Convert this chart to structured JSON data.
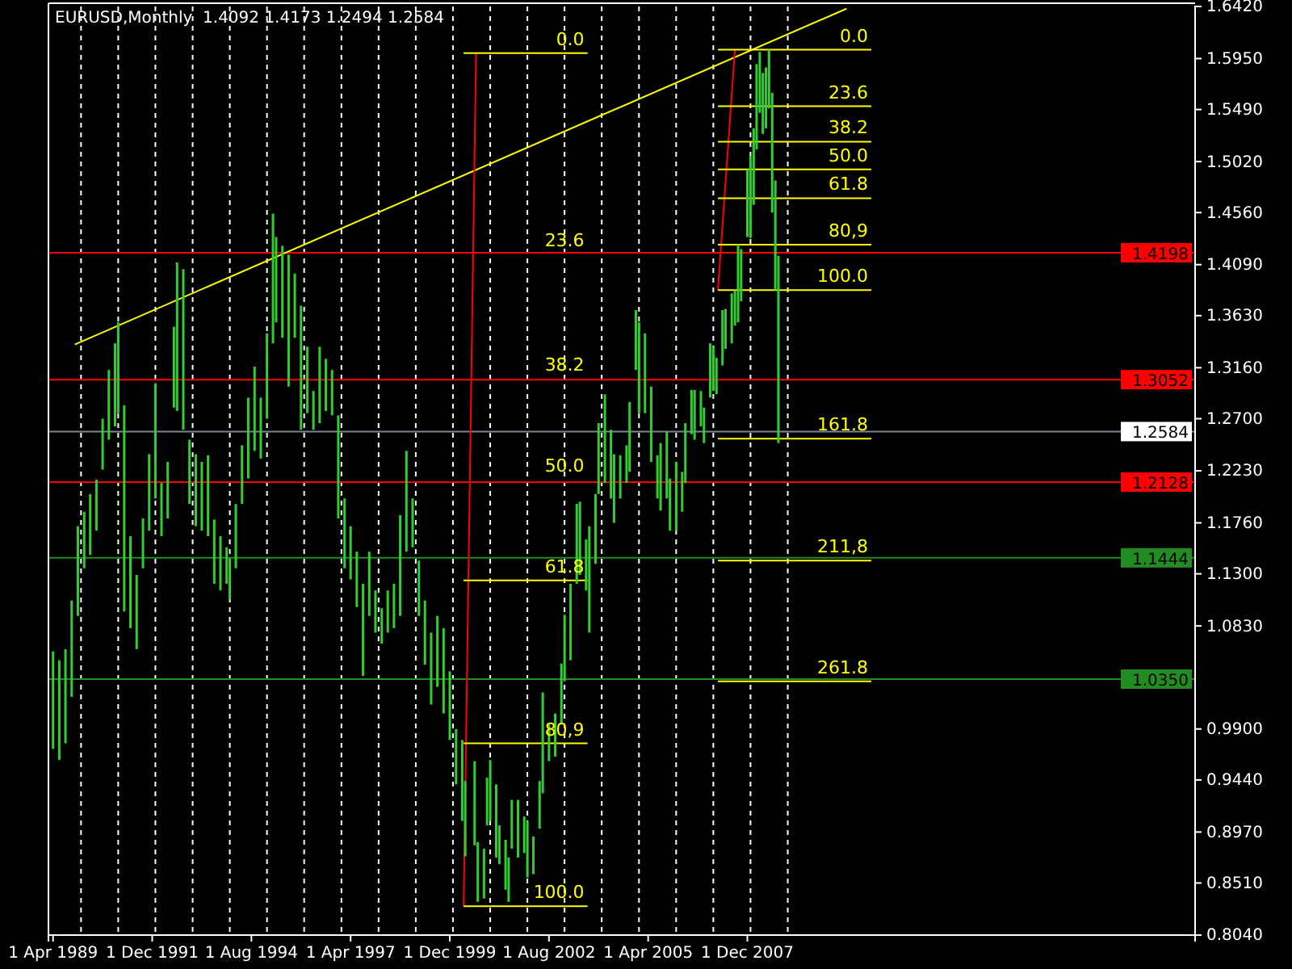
{
  "chart_data": {
    "type": "bar",
    "title": "EURUSD,Monthly  1.4092 1.4173 1.2494 1.2584",
    "xlim": [
      "1989-02-15",
      "2019-12-15"
    ],
    "ylim": [
      0.804,
      1.642
    ],
    "xticks": [
      {
        "value": "1989-04-01",
        "label": "1 Apr 1989"
      },
      {
        "value": "1991-12-01",
        "label": "1 Dec 1991"
      },
      {
        "value": "1994-08-01",
        "label": "1 Aug 1994"
      },
      {
        "value": "1997-04-01",
        "label": "1 Apr 1997"
      },
      {
        "value": "1999-12-01",
        "label": "1 Dec 1999"
      },
      {
        "value": "2002-08-01",
        "label": "1 Aug 2002"
      },
      {
        "value": "2005-04-01",
        "label": "1 Apr 2005"
      },
      {
        "value": "2007-12-01",
        "label": "1 Dec 2007"
      }
    ],
    "yticks": [
      {
        "value": 1.642,
        "label": "1.6420"
      },
      {
        "value": 1.595,
        "label": "1.5950"
      },
      {
        "value": 1.549,
        "label": "1.5490"
      },
      {
        "value": 1.502,
        "label": "1.5020"
      },
      {
        "value": 1.456,
        "label": "1.4560"
      },
      {
        "value": 1.409,
        "label": "1.4090"
      },
      {
        "value": 1.363,
        "label": "1.3630"
      },
      {
        "value": 1.316,
        "label": "1.3160"
      },
      {
        "value": 1.27,
        "label": "1.2700"
      },
      {
        "value": 1.223,
        "label": "1.2230"
      },
      {
        "value": 1.176,
        "label": "1.1760"
      },
      {
        "value": 1.13,
        "label": "1.1300"
      },
      {
        "value": 1.083,
        "label": "1.0830"
      },
      {
        "value": 0.99,
        "label": "0.9900"
      },
      {
        "value": 0.944,
        "label": "0.9440"
      },
      {
        "value": 0.897,
        "label": "0.8970"
      },
      {
        "value": 0.851,
        "label": "0.8510"
      },
      {
        "value": 0.804,
        "label": "0.8040"
      }
    ],
    "x": [
      "1989-04",
      "1989-06",
      "1989-08",
      "1989-10",
      "1989-12",
      "1990-02",
      "1990-04",
      "1990-06",
      "1990-08",
      "1990-10",
      "1990-12",
      "1991-01",
      "1991-03",
      "1991-05",
      "1991-07",
      "1991-09",
      "1991-11",
      "1992-01",
      "1992-03",
      "1992-05",
      "1992-07",
      "1992-08",
      "1992-10",
      "1992-12",
      "1993-02",
      "1993-04",
      "1993-06",
      "1993-08",
      "1993-10",
      "1993-12",
      "1994-01",
      "1994-03",
      "1994-05",
      "1994-07",
      "1994-09",
      "1994-11",
      "1995-01",
      "1995-03",
      "1995-04",
      "1995-06",
      "1995-08",
      "1995-10",
      "1995-12",
      "1996-02",
      "1996-04",
      "1996-06",
      "1996-08",
      "1996-10",
      "1996-12",
      "1997-02",
      "1997-04",
      "1997-06",
      "1997-08",
      "1997-10",
      "1997-12",
      "1998-02",
      "1998-04",
      "1998-06",
      "1998-08",
      "1998-10",
      "1998-12",
      "1999-02",
      "1999-04",
      "1999-06",
      "1999-08",
      "1999-10",
      "1999-12",
      "2000-02",
      "2000-04",
      "2000-05",
      "2000-08",
      "2000-09",
      "2000-11",
      "2000-12",
      "2001-01",
      "2001-03",
      "2001-04",
      "2001-06",
      "2001-07",
      "2001-08",
      "2001-10",
      "2001-12",
      "2002-01",
      "2002-03",
      "2002-05",
      "2002-06",
      "2002-08",
      "2002-10",
      "2002-12",
      "2003-01",
      "2003-03",
      "2003-05",
      "2003-06",
      "2003-08",
      "2003-09",
      "2003-11",
      "2003-12",
      "2004-02",
      "2004-04",
      "2004-05",
      "2004-07",
      "2004-09",
      "2004-10",
      "2004-12",
      "2005-01",
      "2005-03",
      "2005-05",
      "2005-07",
      "2005-08",
      "2005-10",
      "2005-11",
      "2006-01",
      "2006-03",
      "2006-04",
      "2006-06",
      "2006-07",
      "2006-09",
      "2006-10",
      "2006-12",
      "2007-01",
      "2007-02",
      "2007-04",
      "2007-05",
      "2007-07",
      "2007-08",
      "2007-09",
      "2007-10",
      "2007-12",
      "2008-01",
      "2008-02",
      "2008-03",
      "2008-04",
      "2008-05",
      "2008-06",
      "2008-07",
      "2008-08",
      "2008-09",
      "2008-10"
    ],
    "base": [
      0.972,
      0.962,
      0.977,
      1.019,
      1.092,
      1.135,
      1.147,
      1.169,
      1.224,
      1.251,
      1.263,
      1.275,
      1.096,
      1.081,
      1.062,
      1.135,
      1.169,
      1.198,
      1.164,
      1.18,
      1.28,
      1.277,
      1.26,
      1.193,
      1.173,
      1.169,
      1.164,
      1.121,
      1.115,
      1.121,
      1.107,
      1.135,
      1.193,
      1.216,
      1.241,
      1.234,
      1.27,
      1.338,
      1.357,
      1.343,
      1.299,
      1.343,
      1.26,
      1.275,
      1.26,
      1.266,
      1.277,
      1.273,
      1.18,
      1.135,
      1.125,
      1.1,
      1.038,
      1.092,
      1.077,
      1.067,
      1.077,
      1.081,
      1.092,
      1.15,
      1.154,
      1.092,
      1.048,
      1.012,
      1.028,
      1.004,
      0.98,
      0.94,
      0.907,
      0.875,
      0.885,
      0.834,
      0.837,
      0.903,
      0.907,
      0.874,
      0.868,
      0.845,
      0.834,
      0.882,
      0.874,
      0.878,
      0.856,
      0.859,
      0.9,
      0.932,
      0.961,
      0.965,
      0.994,
      1.033,
      1.052,
      1.121,
      1.129,
      1.115,
      1.077,
      1.139,
      1.202,
      1.212,
      1.198,
      1.176,
      1.198,
      1.212,
      1.222,
      1.314,
      1.275,
      1.275,
      1.231,
      1.198,
      1.187,
      1.198,
      1.169,
      1.169,
      1.186,
      1.212,
      1.256,
      1.251,
      1.263,
      1.248,
      1.289,
      1.295,
      1.292,
      1.318,
      1.333,
      1.338,
      1.354,
      1.357,
      1.376,
      1.434,
      1.433,
      1.463,
      1.513,
      1.546,
      1.527,
      1.532,
      1.55,
      1.456,
      1.386,
      1.248
    ],
    "color": "#32cd32",
    "values": [
      0.088,
      0.09,
      0.085,
      0.087,
      0.081,
      0.051,
      0.055,
      0.046,
      0.046,
      0.063,
      0.075,
      0.082,
      0.186,
      0.083,
      0.067,
      0.045,
      0.069,
      0.104,
      0.048,
      0.051,
      0.073,
      0.134,
      0.145,
      0.058,
      0.065,
      0.062,
      0.073,
      0.058,
      0.049,
      0.033,
      0.037,
      0.058,
      0.053,
      0.073,
      0.076,
      0.055,
      0.077,
      0.117,
      0.077,
      0.083,
      0.119,
      0.058,
      0.112,
      0.06,
      0.035,
      0.069,
      0.047,
      0.041,
      0.093,
      0.063,
      0.048,
      0.05,
      0.083,
      0.058,
      0.038,
      0.032,
      0.038,
      0.04,
      0.091,
      0.091,
      0.044,
      0.05,
      0.058,
      0.065,
      0.064,
      0.077,
      0.062,
      0.05,
      0.073,
      0.068,
      0.076,
      0.054,
      0.045,
      0.043,
      0.055,
      0.066,
      0.035,
      0.045,
      0.04,
      0.044,
      0.052,
      0.033,
      0.051,
      0.034,
      0.043,
      0.091,
      0.033,
      0.039,
      0.055,
      0.06,
      0.069,
      0.072,
      0.066,
      0.046,
      0.096,
      0.063,
      0.064,
      0.08,
      0.062,
      0.062,
      0.039,
      0.034,
      0.063,
      0.054,
      0.082,
      0.072,
      0.068,
      0.039,
      0.061,
      0.06,
      0.047,
      0.062,
      0.036,
      0.054,
      0.04,
      0.045,
      0.032,
      0.032,
      0.049,
      0.04,
      0.033,
      0.05,
      0.036,
      0.045,
      0.032,
      0.07,
      0.047,
      0.061,
      0.074,
      0.069,
      0.077,
      0.055,
      0.055,
      0.055,
      0.053,
      0.108,
      0.099,
      0.169
    ],
    "series": [
      {
        "type": "line",
        "color": "#ffff00",
        "x": [
          "1989-11",
          "2010-08"
        ],
        "values": [
          1.337,
          1.64
        ]
      },
      {
        "type": "line",
        "color": "#ff0000",
        "x": [
          "2000-04-15",
          "2000-08-15"
        ],
        "values": [
          0.83,
          1.6
        ]
      },
      {
        "type": "line",
        "color": "#ff0000",
        "x": [
          "2007-02-15",
          "2007-08"
        ],
        "values": [
          1.386,
          1.603
        ]
      },
      {
        "type": "line",
        "color": "#ffff00",
        "x": [
          "2000-04-15",
          "2003-08-15"
        ],
        "values": [
          1.6,
          1.6
        ]
      },
      {
        "type": "line",
        "color": "#ffff00",
        "x": [
          "2000-04-15",
          "2003-08-15"
        ],
        "values": [
          1.124,
          1.124
        ]
      },
      {
        "type": "line",
        "color": "#ffff00",
        "x": [
          "2000-04-15",
          "2003-08-15"
        ],
        "values": [
          0.977,
          0.977
        ]
      },
      {
        "type": "line",
        "color": "#ffff00",
        "x": [
          "2000-04-15",
          "2003-08-15"
        ],
        "values": [
          0.83,
          0.83
        ]
      },
      {
        "type": "line",
        "color": "#ffff00",
        "x": [
          "2007-02-15",
          "2011-04"
        ],
        "values": [
          1.603,
          1.603
        ]
      },
      {
        "type": "line",
        "color": "#ffff00",
        "x": [
          "2007-02-15",
          "2011-04"
        ],
        "values": [
          1.552,
          1.552
        ]
      },
      {
        "type": "line",
        "color": "#ffff00",
        "x": [
          "2007-02-15",
          "2011-04"
        ],
        "values": [
          1.52,
          1.52
        ]
      },
      {
        "type": "line",
        "color": "#ffff00",
        "x": [
          "2007-02-15",
          "2011-04"
        ],
        "values": [
          1.495,
          1.495
        ]
      },
      {
        "type": "line",
        "color": "#ffff00",
        "x": [
          "2007-02-15",
          "2011-04"
        ],
        "values": [
          1.469,
          1.469
        ]
      },
      {
        "type": "line",
        "color": "#ffff00",
        "x": [
          "2007-02-15",
          "2011-04"
        ],
        "values": [
          1.427,
          1.427
        ]
      },
      {
        "type": "line",
        "color": "#ffff00",
        "x": [
          "2007-02-15",
          "2011-04"
        ],
        "values": [
          1.386,
          1.386
        ]
      },
      {
        "type": "line",
        "color": "#ffff00",
        "x": [
          "2007-02-15",
          "2011-04"
        ],
        "values": [
          1.252,
          1.252
        ]
      },
      {
        "type": "line",
        "color": "#ffff00",
        "x": [
          "2007-02-15",
          "2011-04"
        ],
        "values": [
          1.142,
          1.142
        ]
      },
      {
        "type": "line",
        "color": "#ffff00",
        "x": [
          "2007-02-15",
          "2011-04"
        ],
        "values": [
          1.033,
          1.033
        ]
      }
    ],
    "ref_lines": [
      {
        "axis": "y",
        "value": 1.4198,
        "label": "1.4198",
        "color": "#ff0000"
      },
      {
        "axis": "y",
        "value": 1.3052,
        "label": "1.3052",
        "color": "#ff0000"
      },
      {
        "axis": "y",
        "value": 1.2584,
        "label": "1.2584",
        "color": "#778899"
      },
      {
        "axis": "y",
        "value": 1.2128,
        "label": "1.2128",
        "color": "#ff0000"
      },
      {
        "axis": "y",
        "value": 1.1444,
        "label": "1.1444",
        "color": "#228b22"
      },
      {
        "axis": "y",
        "value": 1.035,
        "label": "1.0350",
        "color": "#228b22"
      },
      {
        "axis": "x",
        "value": "1990-01",
        "color": "#ffffff",
        "line_style": "dashed"
      },
      {
        "axis": "x",
        "value": "1991-01",
        "color": "#ffffff",
        "line_style": "dashed"
      },
      {
        "axis": "x",
        "value": "1992-01",
        "color": "#ffffff",
        "line_style": "dashed"
      },
      {
        "axis": "x",
        "value": "1993-01",
        "color": "#ffffff",
        "line_style": "dashed"
      },
      {
        "axis": "x",
        "value": "1994-01",
        "color": "#ffffff",
        "line_style": "dashed"
      },
      {
        "axis": "x",
        "value": "1995-01",
        "color": "#ffffff",
        "line_style": "dashed"
      },
      {
        "axis": "x",
        "value": "1996-01",
        "color": "#ffffff",
        "line_style": "dashed"
      },
      {
        "axis": "x",
        "value": "1997-01",
        "color": "#ffffff",
        "line_style": "dashed"
      },
      {
        "axis": "x",
        "value": "1998-01",
        "color": "#ffffff",
        "line_style": "dashed"
      },
      {
        "axis": "x",
        "value": "1999-01",
        "color": "#ffffff",
        "line_style": "dashed"
      },
      {
        "axis": "x",
        "value": "2000-01",
        "color": "#ffffff",
        "line_style": "dashed"
      },
      {
        "axis": "x",
        "value": "2001-01",
        "color": "#ffffff",
        "line_style": "dashed"
      },
      {
        "axis": "x",
        "value": "2002-01",
        "color": "#ffffff",
        "line_style": "dashed"
      },
      {
        "axis": "x",
        "value": "2003-01",
        "color": "#ffffff",
        "line_style": "dashed"
      },
      {
        "axis": "x",
        "value": "2004-01",
        "color": "#ffffff",
        "line_style": "dashed"
      },
      {
        "axis": "x",
        "value": "2005-01",
        "color": "#ffffff",
        "line_style": "dashed"
      },
      {
        "axis": "x",
        "value": "2006-01",
        "color": "#ffffff",
        "line_style": "dashed"
      },
      {
        "axis": "x",
        "value": "2007-01",
        "color": "#ffffff",
        "line_style": "dashed"
      },
      {
        "axis": "x",
        "value": "2008-01",
        "color": "#ffffff",
        "line_style": "dashed"
      },
      {
        "axis": "x",
        "value": "2009-01",
        "color": "#ffffff",
        "line_style": "dashed"
      }
    ],
    "annotations": [
      {
        "text": "0.0",
        "x": "2003-08-15",
        "y": 1.6
      },
      {
        "text": "23.6",
        "x": "2003-08-15",
        "y": 1.418
      },
      {
        "text": "38.2",
        "x": "2003-08-15",
        "y": 1.306
      },
      {
        "text": "50.0",
        "x": "2003-08-15",
        "y": 1.215
      },
      {
        "text": "61.8",
        "x": "2003-08-15",
        "y": 1.124
      },
      {
        "text": "80,9",
        "x": "2003-08-15",
        "y": 0.977
      },
      {
        "text": "100.0",
        "x": "2003-08-15",
        "y": 0.83
      },
      {
        "text": "0.0",
        "x": "2011-04",
        "y": 1.603
      },
      {
        "text": "23.6",
        "x": "2011-04",
        "y": 1.552
      },
      {
        "text": "38.2",
        "x": "2011-04",
        "y": 1.52
      },
      {
        "text": "50.0",
        "x": "2011-04",
        "y": 1.495
      },
      {
        "text": "61.8",
        "x": "2011-04",
        "y": 1.469
      },
      {
        "text": "80,9",
        "x": "2011-04",
        "y": 1.427
      },
      {
        "text": "100.0",
        "x": "2011-04",
        "y": 1.386
      },
      {
        "text": "161.8",
        "x": "2011-04",
        "y": 1.252
      },
      {
        "text": "211,8",
        "x": "2011-04",
        "y": 1.142
      },
      {
        "text": "261.8",
        "x": "2011-04",
        "y": 1.033
      }
    ]
  }
}
